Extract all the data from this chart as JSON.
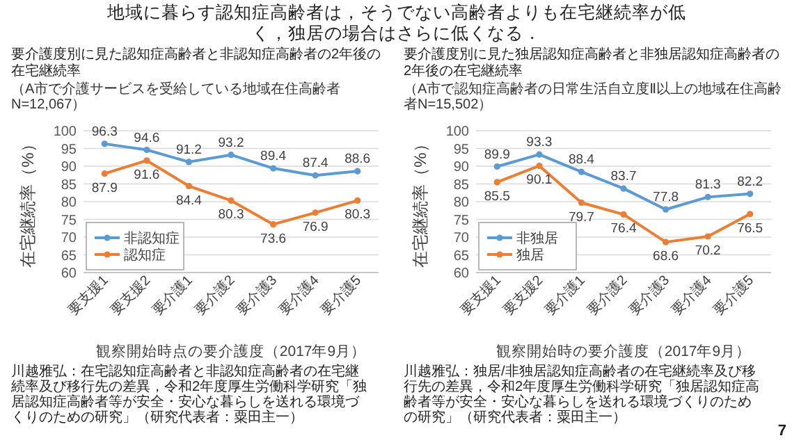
{
  "chart_data": [
    {
      "type": "other",
      "title": "地域に暮らす認知症高齢者は，そうでない高齢者よりも在宅継続率が低く，独居の場合はさらに低くなる．",
      "annotations": [
        "7"
      ]
    },
    {
      "type": "line",
      "title": "要介護度別に見た認知症高齢者と非認知症高齢者の2年後の在宅継続率",
      "subtitle": "（A市で介護サービスを受給している地域在住高齢者N=12,067）",
      "xlabel": "観察開始時点の要介護度（2017年9月）",
      "ylabel": "在宅継続率（%）",
      "categories": [
        "要支援1",
        "要支援2",
        "要介護1",
        "要介護2",
        "要介護3",
        "要介護4",
        "要介護5"
      ],
      "series": [
        {
          "name": "非認知症",
          "color": "#5b9bd5",
          "values": [
            96.3,
            94.6,
            91.2,
            93.2,
            89.4,
            87.4,
            88.6
          ]
        },
        {
          "name": "認知症",
          "color": "#ed7d31",
          "values": [
            87.9,
            91.6,
            84.4,
            80.3,
            73.6,
            76.9,
            80.3
          ]
        }
      ],
      "ylim": [
        60,
        100
      ],
      "yticks": [
        60,
        65,
        70,
        75,
        80,
        85,
        90,
        95,
        100
      ],
      "grid": "y",
      "legend": "bottom left",
      "marker": "circle",
      "line_style": "solid",
      "data_labels": true,
      "annotations": [
        "川越雅弘：在宅認知症高齢者と非認知症高齢者の在宅継続率及び移行先の差異，令和2年度厚生労働科学研究「独居認知症高齢者等が安全・安心な暮らしを送れる環境づくりのための研究」（研究代表者：粟田主一）"
      ]
    },
    {
      "type": "line",
      "title": "要介護度別に見た独居認知症高齢者と非独居認知症高齢者の2年後の在宅継続率",
      "subtitle": "（A市で認知症高齢者の日常生活自立度Ⅱ以上の地域在住高齢者N=15,502）",
      "xlabel": "観察開始時の要介護度（2017年9月）",
      "ylabel": "在宅継続率（%）",
      "categories": [
        "要支援1",
        "要支援2",
        "要介護1",
        "要介護2",
        "要介護3",
        "要介護4",
        "要介護5"
      ],
      "series": [
        {
          "name": "非独居",
          "color": "#5b9bd5",
          "values": [
            89.9,
            93.3,
            88.4,
            83.7,
            77.8,
            81.3,
            82.2
          ]
        },
        {
          "name": "独居",
          "color": "#ed7d31",
          "values": [
            85.5,
            90.1,
            79.7,
            76.4,
            68.6,
            70.2,
            76.5
          ]
        }
      ],
      "ylim": [
        60,
        100
      ],
      "yticks": [
        60,
        65,
        70,
        75,
        80,
        85,
        90,
        95,
        100
      ],
      "grid": "y",
      "legend": "bottom left",
      "marker": "circle",
      "line_style": "solid",
      "data_labels": true,
      "annotations": [
        "川越雅弘：独居/非独居認知症高齢者の在宅継続率及び移行先の差異，令和2年度厚生労働科学研究「独居認知症高齢者等が安全・安心な暮らしを送れる環境づくりのための研究」（研究代表者：粟田主一）"
      ]
    }
  ]
}
